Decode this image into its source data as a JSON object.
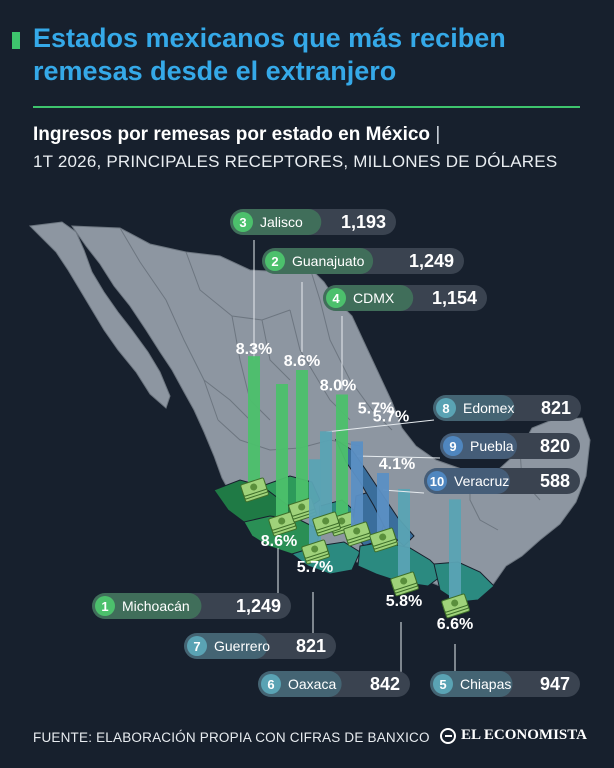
{
  "header": {
    "title": "Estados mexicanos que más reciben remesas desde el extranjero",
    "subtitle_bold": "Ingresos por remesas por estado en México",
    "subtitle_sep": "|",
    "subtitle_rest": "1T 2026, PRINCIPALES RECEPTORES, MILLONES DE DÓLARES"
  },
  "footer": {
    "source": "FUENTE: ELABORACIÓN PROPIA CON CIFRAS DE BANXICO",
    "brand": "EL ECONOMISTA"
  },
  "colors": {
    "background": "#17202d",
    "title": "#35a9e8",
    "accent_green": "#3ec46d",
    "map_gray": "#8d96a1",
    "region_green_dark": "#1f7a45",
    "region_green_mid": "#2d9a5a",
    "region_blue": "#3a6e9c",
    "region_teal": "#2b8a80",
    "pill_bg": "#3a4350",
    "green_bar": "#4cc06c",
    "teal_bar": "#5aa3b4",
    "blue_bar": "#5b8fc4"
  },
  "icons": {
    "money": "money-stack-icon"
  },
  "chart_data": {
    "type": "bar",
    "title": "Ingresos por remesas por estado en México",
    "subtitle": "1T 2026, PRINCIPALES RECEPTORES, MILLONES DE DÓLARES",
    "unit": "MILLONES DE DÓLARES",
    "series": [
      {
        "rank": 1,
        "state": "Michoacán",
        "value": 1249,
        "value_label": "1,249",
        "share_label": "8.6%",
        "color": "green"
      },
      {
        "rank": 2,
        "state": "Guanajuato",
        "value": 1249,
        "value_label": "1,249",
        "share_label": "8.6%",
        "color": "green"
      },
      {
        "rank": 3,
        "state": "Jalisco",
        "value": 1193,
        "value_label": "1,193",
        "share_label": "8.3%",
        "color": "green"
      },
      {
        "rank": 4,
        "state": "CDMX",
        "value": 1154,
        "value_label": "1,154",
        "share_label": "8.0%",
        "color": "green"
      },
      {
        "rank": 5,
        "state": "Chiapas",
        "value": 947,
        "value_label": "947",
        "share_label": "6.6%",
        "color": "teal"
      },
      {
        "rank": 6,
        "state": "Oaxaca",
        "value": 842,
        "value_label": "842",
        "share_label": "5.8%",
        "color": "teal"
      },
      {
        "rank": 7,
        "state": "Guerrero",
        "value": 821,
        "value_label": "821",
        "share_label": "5.7%",
        "color": "teal"
      },
      {
        "rank": 8,
        "state": "Edomex",
        "value": 821,
        "value_label": "821",
        "share_label": "5.7%",
        "color": "teal"
      },
      {
        "rank": 9,
        "state": "Puebla",
        "value": 820,
        "value_label": "820",
        "share_label": "5.7%",
        "color": "blue"
      },
      {
        "rank": 10,
        "state": "Veracruz",
        "value": 588,
        "value_label": "588",
        "share_label": "4.1%",
        "color": "blue"
      }
    ]
  }
}
